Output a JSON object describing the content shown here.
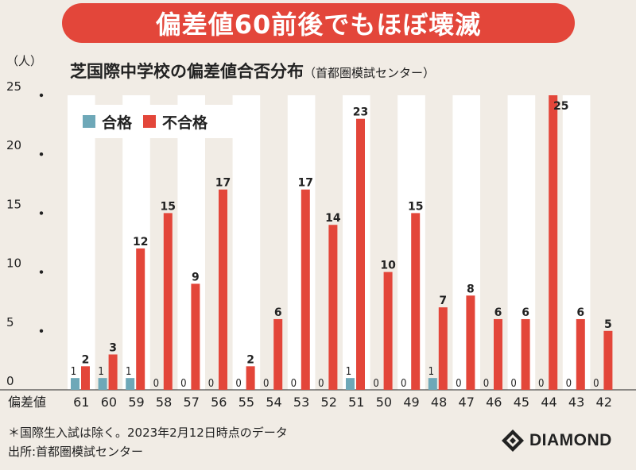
{
  "banner": "偏差値60前後でもほぼ壊滅",
  "subtitle_main": "芝国際中学校の偏差値合否分布",
  "subtitle_source": "（首都圏模試センター）",
  "unit_label": "（人）",
  "xlabel": "偏差値",
  "legend": [
    {
      "label": "合格",
      "color": "#6ea8b8"
    },
    {
      "label": "不合格",
      "color": "#e3463a"
    }
  ],
  "note": "＊国際生入試は除く。2023年2月12日時点のデータ",
  "source": "出所:首都圏模試センター",
  "logo": "DIAMOND",
  "chart_data": {
    "type": "bar",
    "title": "芝国際中学校の偏差値合否分布",
    "xlabel": "偏差値",
    "ylabel": "（人）",
    "ylim": [
      0,
      25
    ],
    "yticks": [
      0,
      5,
      10,
      15,
      20,
      25
    ],
    "categories": [
      "61",
      "60",
      "59",
      "58",
      "57",
      "56",
      "55",
      "54",
      "53",
      "52",
      "51",
      "50",
      "49",
      "48",
      "47",
      "46",
      "45",
      "44",
      "43",
      "42"
    ],
    "series": [
      {
        "name": "合格",
        "color": "#6ea8b8",
        "values": [
          1,
          1,
          1,
          0,
          0,
          0,
          0,
          0,
          0,
          0,
          1,
          0,
          0,
          1,
          0,
          0,
          0,
          0,
          0,
          0
        ]
      },
      {
        "name": "不合格",
        "color": "#e3463a",
        "values": [
          2,
          3,
          12,
          15,
          9,
          17,
          2,
          6,
          17,
          14,
          23,
          10,
          15,
          7,
          8,
          6,
          6,
          25,
          6,
          5
        ]
      }
    ],
    "grid": false,
    "legend_position": "top-left"
  }
}
